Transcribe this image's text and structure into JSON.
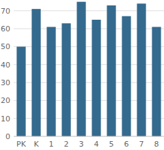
{
  "chart_data": {
    "type": "bar",
    "categories": [
      "PK",
      "K",
      "1",
      "2",
      "3",
      "4",
      "5",
      "6",
      "7",
      "8"
    ],
    "values": [
      50,
      71,
      61,
      63,
      75,
      65,
      73,
      67,
      74,
      61
    ],
    "color": "#346a8e",
    "ylim": [
      0,
      76
    ],
    "yticks": [
      0,
      10,
      20,
      30,
      40,
      50,
      60,
      70
    ],
    "grid": true
  }
}
